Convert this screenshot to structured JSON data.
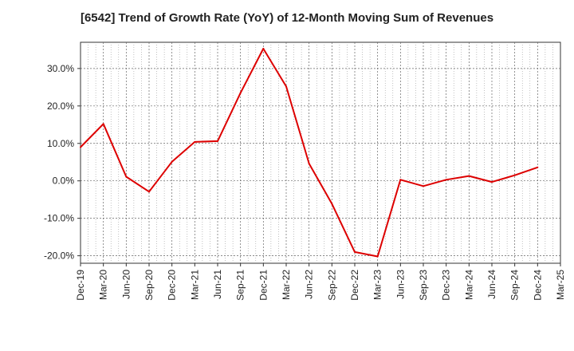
{
  "chart_data": {
    "type": "line",
    "title": "[6542]  Trend of Growth Rate (YoY) of 12-Month Moving Sum of Revenues",
    "xlabel": "",
    "ylabel": "",
    "categories": [
      "Dec-19",
      "Mar-20",
      "Jun-20",
      "Sep-20",
      "Dec-20",
      "Mar-21",
      "Jun-21",
      "Sep-21",
      "Dec-21",
      "Mar-22",
      "Jun-22",
      "Sep-22",
      "Dec-22",
      "Mar-23",
      "Jun-23",
      "Sep-23",
      "Dec-23",
      "Mar-24",
      "Jun-24",
      "Sep-24",
      "Dec-24",
      "Mar-25"
    ],
    "series": [
      {
        "color": "#dd0000",
        "values": [
          9.0,
          15.2,
          1.1,
          -2.9,
          5.1,
          10.4,
          10.6,
          23.5,
          35.3,
          25.2,
          4.6,
          -6.1,
          -19.0,
          -20.2,
          0.3,
          -1.4,
          0.3,
          1.3,
          -0.3,
          1.5,
          3.6,
          null
        ]
      }
    ],
    "ylim": [
      -22,
      37
    ],
    "yticks": [
      30,
      20,
      10,
      0,
      -10,
      -20
    ],
    "ytick_labels": [
      "30.0%",
      "20.0%",
      "10.0%",
      "0.0%",
      "-10.0%",
      "-20.0%"
    ],
    "grid": true,
    "legend": "none"
  }
}
